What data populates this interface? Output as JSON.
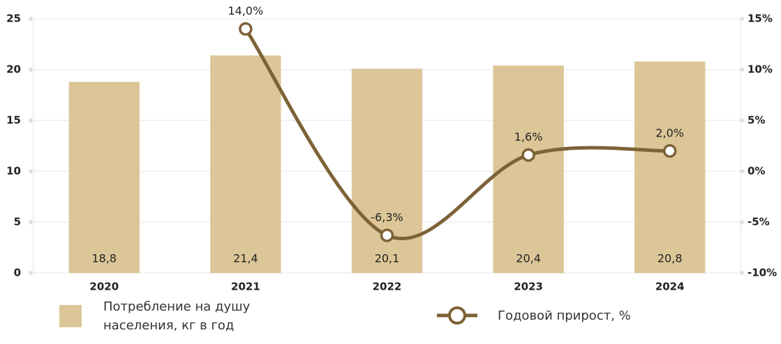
{
  "chart_data": {
    "type": "bar",
    "categories": [
      "2020",
      "2021",
      "2022",
      "2023",
      "2024"
    ],
    "series": [
      {
        "name": "Потребление на душу населения, кг в год",
        "type": "bar",
        "color": "#dcc697",
        "values": [
          18.8,
          21.4,
          20.1,
          20.4,
          20.8
        ],
        "value_labels": [
          "18,8",
          "21,4",
          "20,1",
          "20,4",
          "20,8"
        ]
      },
      {
        "name": "Годовой прирост, %",
        "type": "line",
        "axis": "y2",
        "color": "#7d6236",
        "values": [
          null,
          14.0,
          -6.3,
          1.6,
          2.0
        ],
        "value_labels": [
          null,
          "14,0%",
          "-6,3%",
          "1,6%",
          "2,0%"
        ]
      }
    ],
    "ylim": [
      0,
      25
    ],
    "yticks": [
      0,
      5,
      10,
      15,
      20,
      25
    ],
    "y2lim": [
      -10,
      15
    ],
    "y2ticks": [
      {
        "value": -10,
        "label": "-10%"
      },
      {
        "value": -5,
        "label": "-5%"
      },
      {
        "value": 0,
        "label": "0%"
      },
      {
        "value": 5,
        "label": "5%"
      },
      {
        "value": 10,
        "label": "10%"
      },
      {
        "value": 15,
        "label": "15%"
      }
    ],
    "grid": true
  }
}
